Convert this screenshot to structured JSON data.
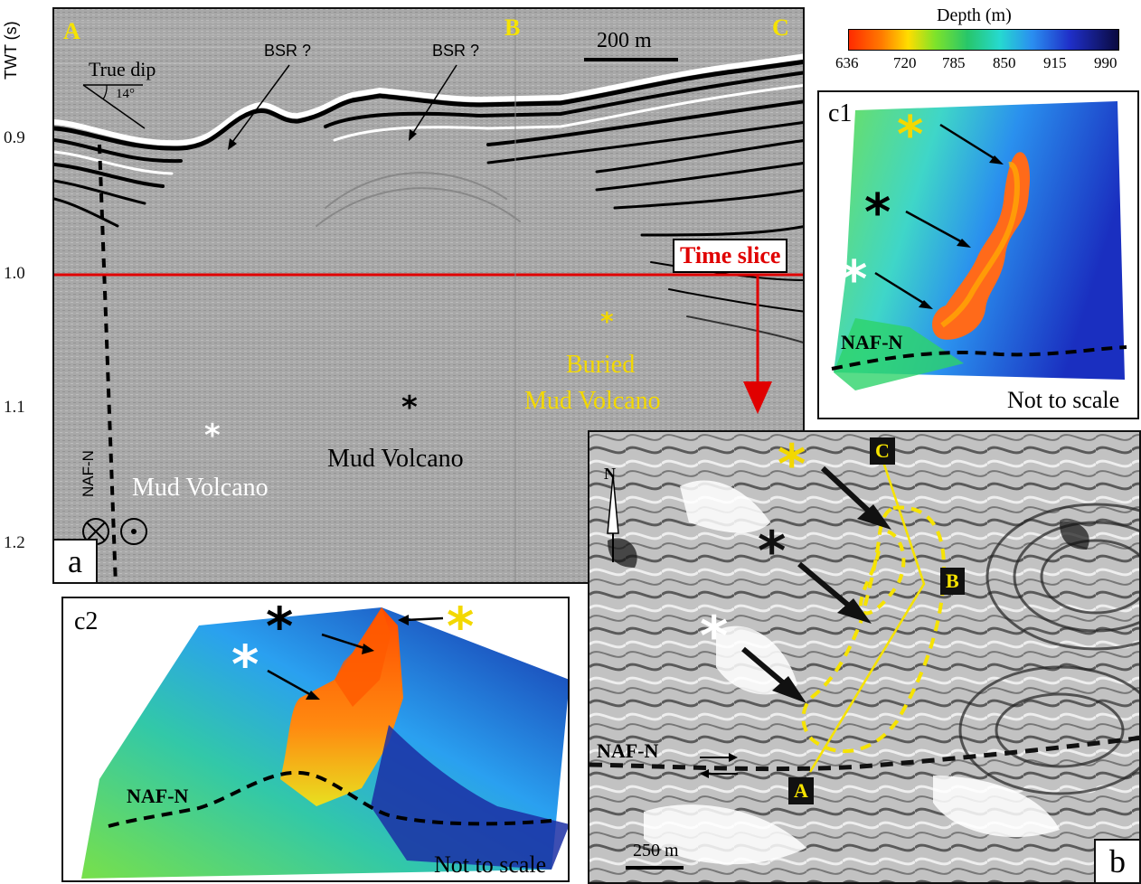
{
  "panel_a": {
    "id": "a",
    "axis_label": "TWT (s)",
    "ticks": [
      "0.9",
      "1.0",
      "1.1",
      "1.2"
    ],
    "corner_labels": [
      "A",
      "B",
      "C"
    ],
    "scale_bar": "200 m",
    "true_dip_label": "True dip",
    "dip_angle": "14°",
    "bsr_label_1": "BSR ?",
    "bsr_label_2": "BSR ?",
    "time_slice_label": "Time slice",
    "fault_label": "NAF-N",
    "mud_volcano_1": "Mud Volcano",
    "mud_volcano_2": "Mud Volcano",
    "buried_line1": "Buried",
    "buried_line2": "Mud Volcano",
    "star": "*"
  },
  "colorbar": {
    "title": "Depth (m)",
    "ticks": [
      "636",
      "720",
      "785",
      "850",
      "915",
      "990"
    ]
  },
  "panel_c1": {
    "id": "c1",
    "fault_label": "NAF-N",
    "note": "Not to scale",
    "star": "*"
  },
  "panel_c2": {
    "id": "c2",
    "fault_label": "NAF-N",
    "note": "Not to scale",
    "star": "*"
  },
  "panel_b": {
    "id": "b",
    "north": "N",
    "scale_bar": "250 m",
    "fault_label": "NAF-N",
    "point_labels": [
      "A",
      "B",
      "C"
    ],
    "star": "*"
  },
  "colors": {
    "star_yellow": "#f3d800",
    "star_white": "#ffffff",
    "star_black": "#111111",
    "time_slice_red": "#e00000",
    "label_yellow": "#f6e300"
  }
}
